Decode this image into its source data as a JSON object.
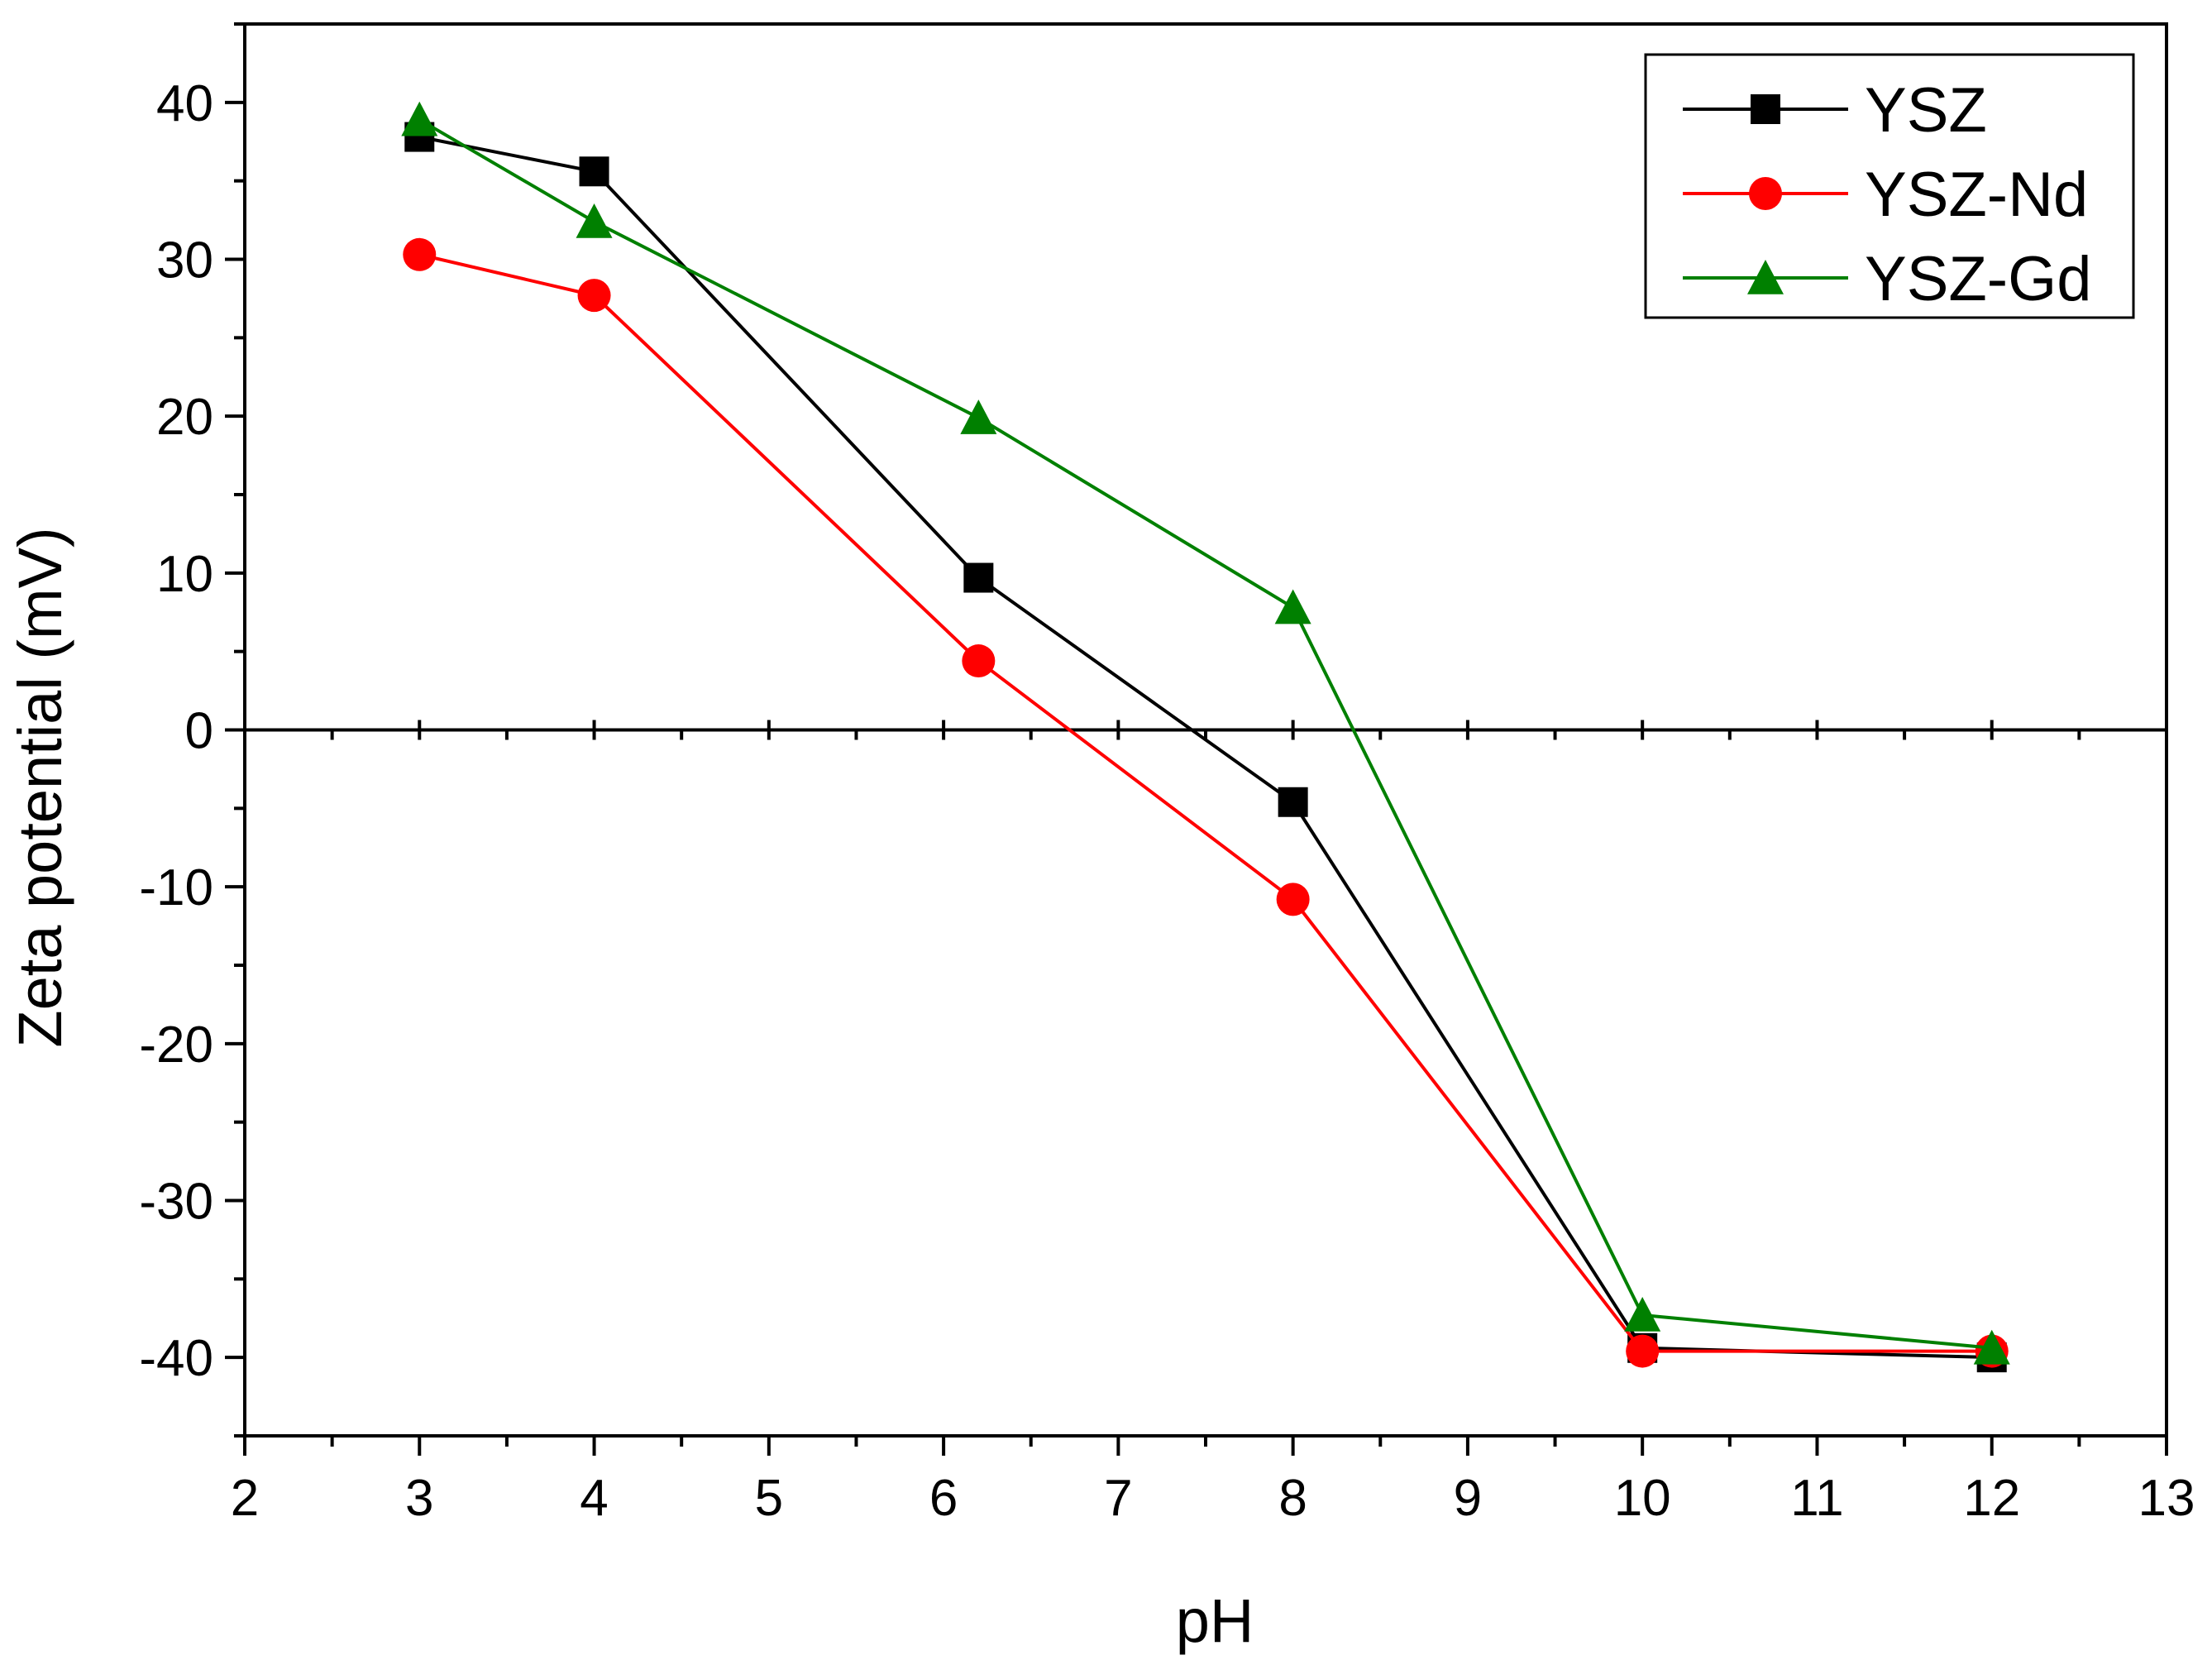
{
  "chart_data": {
    "type": "line",
    "title": "",
    "xlabel": "pH",
    "ylabel": "Zeta potential (mV)",
    "xlim": [
      2,
      13
    ],
    "ylim": [
      -45,
      45
    ],
    "xticks": [
      2,
      3,
      4,
      5,
      6,
      7,
      8,
      9,
      10,
      11,
      12,
      13
    ],
    "yticks": [
      -40,
      -30,
      -20,
      -10,
      0,
      10,
      20,
      30,
      40
    ],
    "xtick_labels": [
      "2",
      "3",
      "4",
      "5",
      "6",
      "7",
      "8",
      "9",
      "10",
      "11",
      "12",
      "13"
    ],
    "ytick_labels": [
      "-40",
      "-30",
      "-20",
      "-10",
      "0",
      "10",
      "20",
      "30",
      "40"
    ],
    "zero_line": true,
    "grid": false,
    "legend_position": "top-right",
    "series": [
      {
        "name": "YSZ",
        "color": "#000000",
        "marker": "square",
        "x": [
          3,
          4,
          6.2,
          8,
          10,
          12
        ],
        "y": [
          37.8,
          35.6,
          9.7,
          -4.6,
          -39.4,
          -40.0
        ]
      },
      {
        "name": "YSZ-Nd",
        "color": "#ff0000",
        "marker": "circle",
        "x": [
          3,
          4,
          6.2,
          8,
          10,
          12
        ],
        "y": [
          30.3,
          27.7,
          4.4,
          -10.8,
          -39.6,
          -39.6
        ]
      },
      {
        "name": "YSZ-Gd",
        "color": "#008000",
        "marker": "triangle",
        "x": [
          3,
          4,
          6.2,
          8,
          10,
          12
        ],
        "y": [
          38.9,
          32.4,
          19.9,
          7.8,
          -37.3,
          -39.4
        ]
      }
    ]
  }
}
